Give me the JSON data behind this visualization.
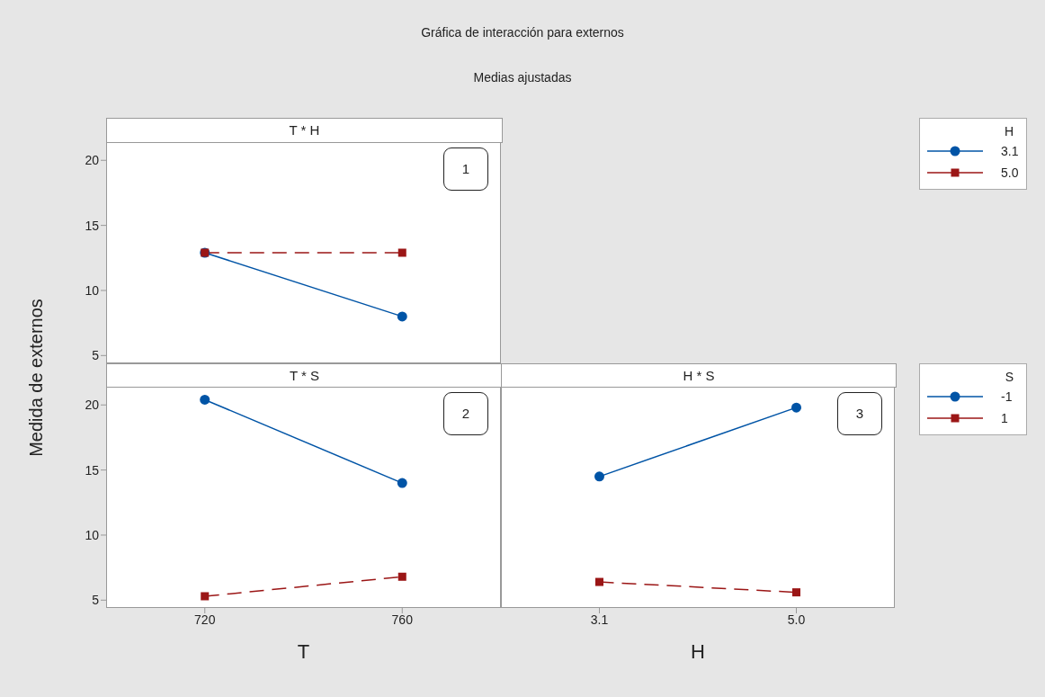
{
  "chart_data": [
    {
      "type": "line",
      "title": "Gráfica de interacción para externos",
      "subtitle": "Medias ajustadas",
      "annotations": [
        "T * H",
        "1"
      ],
      "ylabel": "Medida de externos",
      "categories": [
        "720",
        "760"
      ],
      "ylim": [
        4.4,
        21.4
      ],
      "yticks": [
        5,
        10,
        15,
        20
      ],
      "tick_labels": "y",
      "legend": "right",
      "legend_title": "H",
      "series": [
        {
          "name": "3.1",
          "color": "#0054a6",
          "values": [
            12.9,
            8.0
          ],
          "marker": "circle",
          "line_style": "solid"
        },
        {
          "name": "5.0",
          "color": "#9b1616",
          "values": [
            12.9,
            12.9
          ],
          "marker": "square",
          "line_style": "dashed"
        }
      ]
    },
    {
      "type": "line",
      "title": "T * S",
      "annotations": [
        "2"
      ],
      "xlabel": "T",
      "categories": [
        "720",
        "760"
      ],
      "ylim": [
        4.4,
        21.4
      ],
      "yticks": [
        5,
        10,
        15,
        20
      ],
      "series": [
        {
          "color": "#0054a6",
          "values": [
            20.4,
            14.0
          ],
          "marker": "circle",
          "line_style": "solid"
        },
        {
          "color": "#9b1616",
          "values": [
            5.3,
            6.8
          ],
          "marker": "square",
          "line_style": "dashed"
        }
      ]
    },
    {
      "type": "line",
      "title": "H * S",
      "annotations": [
        "3"
      ],
      "xlabel": "H",
      "categories": [
        "3.1",
        "5.0"
      ],
      "ylim": [
        4.4,
        21.4
      ],
      "yticks": [
        5,
        10,
        15,
        20
      ],
      "tick_labels": "x",
      "legend": "right",
      "legend_title": "S",
      "series": [
        {
          "name": "-1",
          "color": "#0054a6",
          "values": [
            14.5,
            19.8
          ],
          "marker": "circle",
          "line_style": "solid"
        },
        {
          "name": "1",
          "color": "#9b1616",
          "values": [
            6.4,
            5.6
          ],
          "marker": "square",
          "line_style": "dashed"
        }
      ]
    }
  ]
}
